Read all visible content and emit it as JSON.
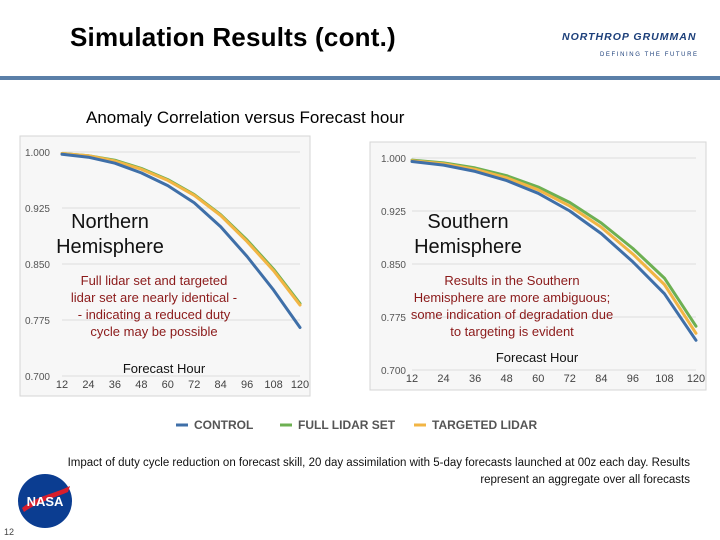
{
  "slide": {
    "title": "Simulation Results (cont.)",
    "subtitle": "Anomaly Correlation versus Forecast hour",
    "caption": "Impact of duty cycle reduction on forecast skill, 20 day assimilation with 5-day forecasts launched at 00z each day. Results represent an aggregate over all forecasts",
    "page_number": "12",
    "logo_text": "NORTHROP GRUMMAN",
    "logo_tagline": "DEFINING THE FUTURE",
    "nasa_text": "NASA"
  },
  "colors": {
    "control": "#3f6fa8",
    "full_lidar": "#6db052",
    "targeted": "#f2b544",
    "accent_rule": "#5b7fa8",
    "note_text": "#8b1a1a"
  },
  "annotations": {
    "north_title_1": "Northern",
    "north_title_2": "Hemisphere",
    "north_note": [
      "Full lidar set and targeted",
      "lidar set are nearly identical -",
      "- indicating a reduced duty",
      "cycle may be possible"
    ],
    "north_xlabel": "Forecast Hour",
    "south_title_1": "Southern",
    "south_title_2": "Hemisphere",
    "south_note": [
      "Results in the Southern",
      "Hemisphere are more ambiguous;",
      "some indication of degradation due",
      "to targeting is evident"
    ],
    "south_xlabel": "Forecast Hour"
  },
  "chart_data": [
    {
      "type": "line",
      "title": "Northern Hemisphere",
      "xlabel": "Forecast Hour",
      "ylabel": "",
      "x": [
        12,
        24,
        36,
        48,
        60,
        72,
        84,
        96,
        108,
        120
      ],
      "xlim": [
        12,
        120
      ],
      "ylim": [
        0.7,
        1.0
      ],
      "y_ticks": [
        "1.000",
        "0.925",
        "0.850",
        "0.775",
        "0.700"
      ],
      "grid": true,
      "series": [
        {
          "name": "CONTROL",
          "values": [
            0.997,
            0.993,
            0.985,
            0.972,
            0.955,
            0.932,
            0.9,
            0.86,
            0.815,
            0.765
          ]
        },
        {
          "name": "FULL LIDAR SET",
          "values": [
            0.998,
            0.995,
            0.989,
            0.978,
            0.963,
            0.943,
            0.916,
            0.882,
            0.843,
            0.797
          ]
        },
        {
          "name": "TARGETED LIDAR",
          "values": [
            0.998,
            0.995,
            0.988,
            0.977,
            0.962,
            0.942,
            0.915,
            0.88,
            0.841,
            0.795
          ]
        }
      ]
    },
    {
      "type": "line",
      "title": "Southern Hemisphere",
      "xlabel": "Forecast Hour",
      "ylabel": "",
      "x": [
        12,
        24,
        36,
        48,
        60,
        72,
        84,
        96,
        108,
        120
      ],
      "xlim": [
        12,
        120
      ],
      "ylim": [
        0.7,
        1.0
      ],
      "y_ticks": [
        "1.000",
        "0.925",
        "0.850",
        "0.775",
        "0.700"
      ],
      "grid": true,
      "series": [
        {
          "name": "CONTROL",
          "values": [
            0.995,
            0.99,
            0.981,
            0.968,
            0.95,
            0.925,
            0.893,
            0.853,
            0.808,
            0.742
          ]
        },
        {
          "name": "FULL LIDAR SET",
          "values": [
            0.997,
            0.993,
            0.986,
            0.975,
            0.959,
            0.937,
            0.908,
            0.872,
            0.83,
            0.762
          ]
        },
        {
          "name": "TARGETED LIDAR",
          "values": [
            0.996,
            0.992,
            0.984,
            0.972,
            0.955,
            0.932,
            0.902,
            0.864,
            0.821,
            0.752
          ]
        }
      ]
    }
  ]
}
